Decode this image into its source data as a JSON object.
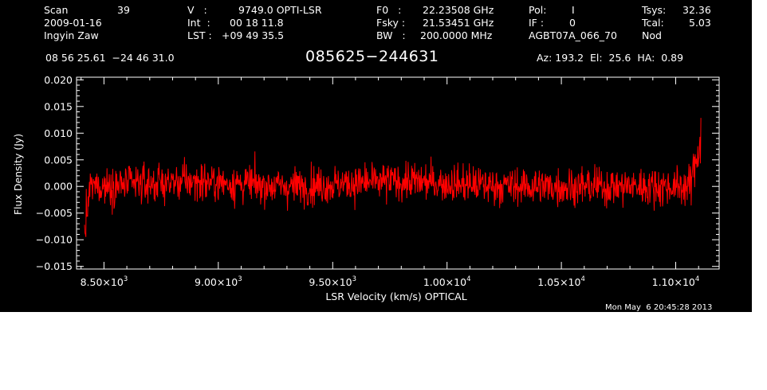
{
  "header": {
    "left": {
      "scan_label": "Scan",
      "scan_value": "39",
      "date": "2009-01-16",
      "observer": "Ingyin Zaw"
    },
    "center": {
      "velocity_label": "V   :",
      "velocity_value": "9749.0 OPTI-LSR",
      "int_label": "Int  :",
      "int_value": "00 18 11.8",
      "lst_label": "LST :",
      "lst_value": "+09 49 35.5"
    },
    "freq": {
      "f0_label": "F0   :",
      "f0_value": "22.23508 GHz",
      "fsky_label": "Fsky :",
      "fsky_value": "21.53451 GHz",
      "bw_label": "BW   :",
      "bw_value": "200.0000 MHz"
    },
    "pol": {
      "pol_label": "Pol:",
      "pol_value": "I",
      "if_label": "IF :",
      "if_value": "0",
      "project": "AGBT07A_066_70"
    },
    "sys": {
      "tsys_label": "Tsys:",
      "tsys_value": "32.36",
      "tcal_label": "Tcal:",
      "tcal_value": "5.03",
      "mode": "Nod"
    },
    "coords": "08 56 25.61  −24 46 31.0",
    "source": "085625−244631",
    "pointing": "Az: 193.2  El:  25.6  HA:  0.89"
  },
  "timestamp": "Mon May  6 20:45:28 2013",
  "colors": {
    "background": "#000000",
    "axes": "#ffffff",
    "series": "#ff0000"
  },
  "chart_data": {
    "type": "line",
    "title": "085625−244631",
    "xlabel": "LSR Velocity (km/s) OPTICAL",
    "ylabel": "Flux Density (Jy)",
    "xlim": [
      8380,
      11190
    ],
    "ylim": [
      -0.0155,
      0.0205
    ],
    "x_range_data": [
      8415,
      11110
    ],
    "x_ticks": [
      {
        "value": 8500,
        "mant": "8.50×10",
        "exp": "3"
      },
      {
        "value": 9000,
        "mant": "9.00×10",
        "exp": "3"
      },
      {
        "value": 9500,
        "mant": "9.50×10",
        "exp": "3"
      },
      {
        "value": 10000,
        "mant": "1.00×10",
        "exp": "4"
      },
      {
        "value": 10500,
        "mant": "1.05×10",
        "exp": "4"
      },
      {
        "value": 11000,
        "mant": "1.10×10",
        "exp": "4"
      }
    ],
    "y_ticks": [
      {
        "value": 0.02,
        "label": "0.020"
      },
      {
        "value": 0.015,
        "label": "0.015"
      },
      {
        "value": 0.01,
        "label": "0.010"
      },
      {
        "value": 0.005,
        "label": "0.005"
      },
      {
        "value": 0.0,
        "label": "0.000"
      },
      {
        "value": -0.005,
        "label": "−0.005"
      },
      {
        "value": -0.01,
        "label": "−0.010"
      },
      {
        "value": -0.015,
        "label": "−0.015"
      }
    ],
    "series_profile": [
      [
        8415,
        -0.009,
        0.003
      ],
      [
        8440,
        0.0,
        0.0025
      ],
      [
        8900,
        0.001,
        0.0025
      ],
      [
        9300,
        0.0,
        0.0025
      ],
      [
        9800,
        0.001,
        0.0025
      ],
      [
        10300,
        0.0,
        0.0025
      ],
      [
        10800,
        0.0,
        0.0025
      ],
      [
        11060,
        0.0,
        0.0025
      ],
      [
        11085,
        0.004,
        0.003
      ],
      [
        11110,
        0.009,
        0.003
      ]
    ],
    "grid": false,
    "legend": "none"
  }
}
